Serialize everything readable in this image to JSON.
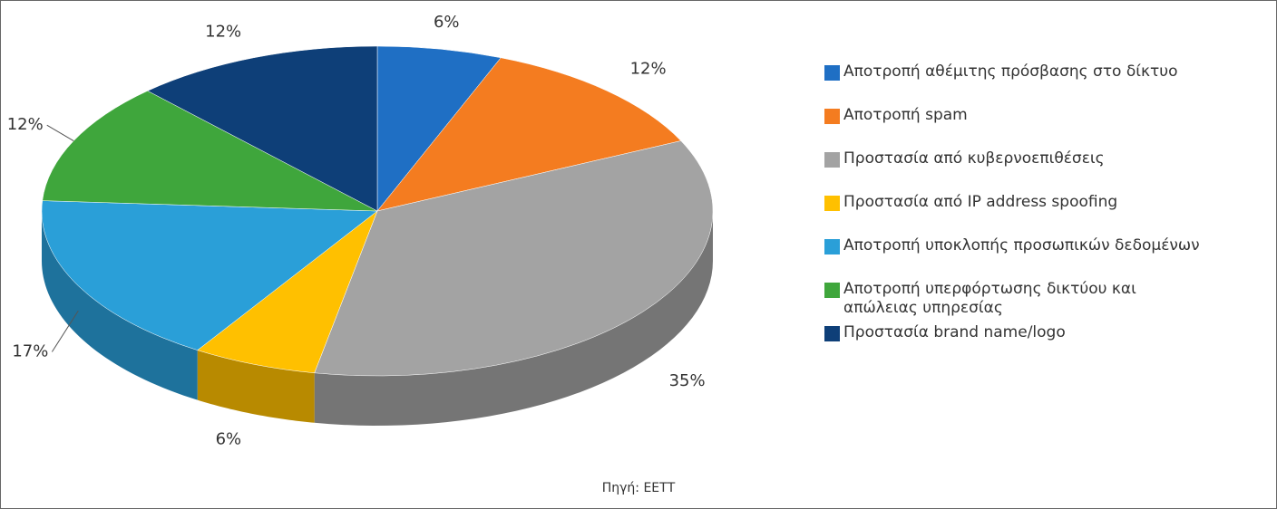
{
  "chart_data": {
    "type": "pie",
    "categories": [
      "Αποτροπή αθέμιτης πρόσβασης στο δίκτυο",
      "Αποτροπή spam",
      "Προστασία από κυβερνοεπιθέσεις",
      "Προστασία από IP address spoofing",
      "Αποτροπή υποκλοπής προσωπικών δεδομένων",
      "Αποτροπή υπερφόρτωσης δικτύου και απώλειας υπηρεσίας",
      "Προστασία brand name/logo"
    ],
    "values": [
      6,
      12,
      35,
      6,
      17,
      12,
      12
    ],
    "value_labels": [
      "6%",
      "12%",
      "35%",
      "6%",
      "17%",
      "12%",
      "12%"
    ],
    "colors": [
      "#1f6fc4",
      "#f47c20",
      "#a3a3a3",
      "#ffc000",
      "#2a9fd8",
      "#3fa63c",
      "#0e3f78"
    ],
    "source": "Πηγή: ΕΕΤΤ"
  }
}
